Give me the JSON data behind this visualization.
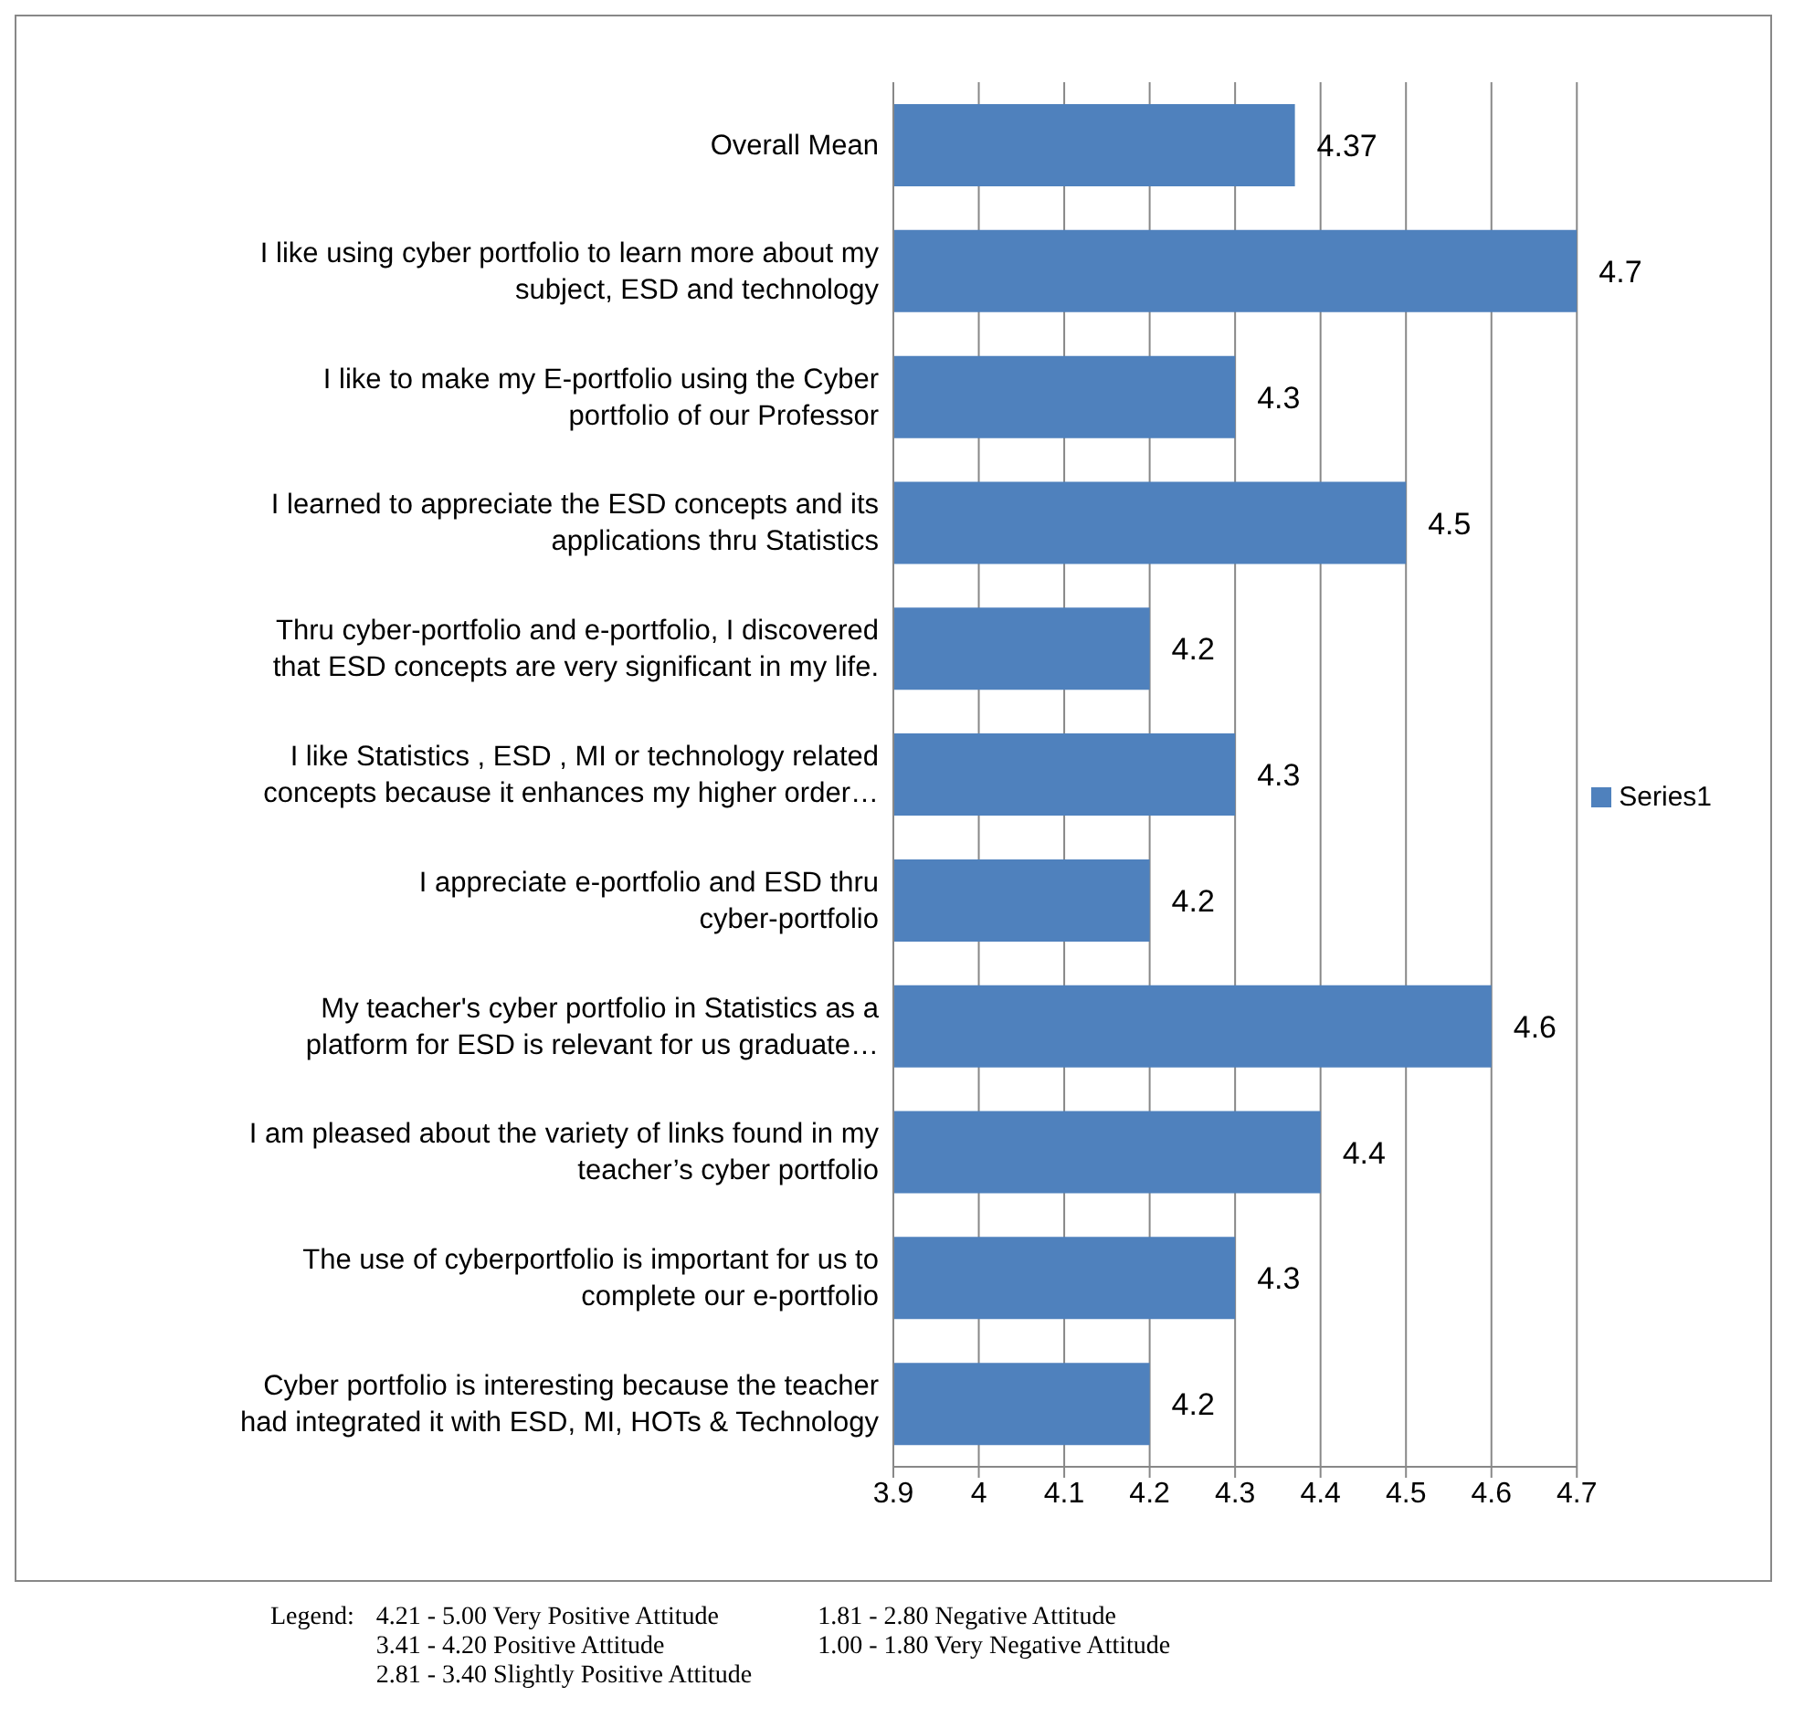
{
  "chart_data": {
    "type": "bar",
    "orientation": "horizontal",
    "categories": [
      "Overall Mean",
      "I like using cyber portfolio to learn more about my subject, ESD and technology",
      "I like to make my E-portfolio using the Cyber portfolio of our Professor",
      "I learned to appreciate the ESD concepts and its applications thru Statistics",
      "Thru cyber-portfolio and e-portfolio, I discovered that ESD  concepts are very significant in my life.",
      "I like Statistics , ESD , MI or technology related concepts because it enhances my higher order…",
      "I appreciate e-portfolio and ESD thru cyber-portfolio",
      "My teacher's cyber portfolio in Statistics as a platform for ESD is relevant for us graduate…",
      "I am pleased about the variety of links found in my teacher’s cyber portfolio",
      "The use of cyberportfolio is important for us to complete our e-portfolio",
      "Cyber portfolio is interesting because the teacher had integrated it with ESD, MI, HOTs & Technology"
    ],
    "series": [
      {
        "name": "Series1",
        "color": "#4f81bd",
        "values": [
          4.37,
          4.7,
          4.3,
          4.5,
          4.2,
          4.3,
          4.2,
          4.6,
          4.4,
          4.3,
          4.2
        ]
      }
    ],
    "xlim": [
      3.9,
      4.7
    ],
    "xticks": [
      3.9,
      4,
      4.1,
      4.2,
      4.3,
      4.4,
      4.5,
      4.6,
      4.7
    ],
    "grid": "x",
    "legend": "right",
    "data_labels": true,
    "annotations": [
      "Legend:",
      "4.21 - 5.00  Very Positive Attitude",
      "1.81 - 2.80  Negative Attitude",
      "3.41 - 4.20  Positive Attitude",
      "1.00 - 1.80  Very Negative Attitude",
      "2.81 - 3.40  Slightly Positive Attitude"
    ]
  }
}
